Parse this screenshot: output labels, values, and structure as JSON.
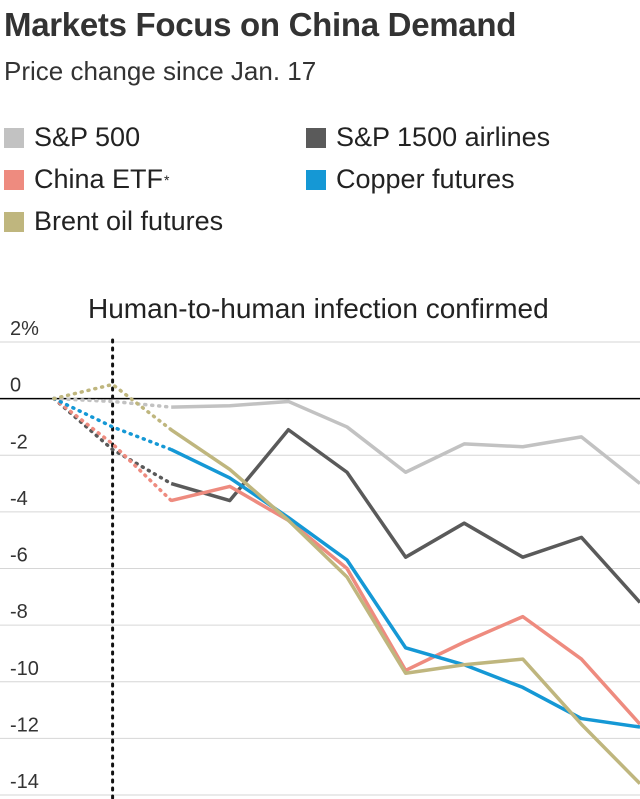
{
  "header": {
    "title": "Markets Focus on China Demand",
    "subtitle": "Price change since Jan. 17"
  },
  "legend": [
    {
      "label": "S&P 500",
      "note": "",
      "color": "#c2c2c2"
    },
    {
      "label": "S&P 1500 airlines",
      "note": "",
      "color": "#5a5a5a"
    },
    {
      "label": "China ETF",
      "note": "*",
      "color": "#ee8b7f"
    },
    {
      "label": "Copper futures",
      "note": "",
      "color": "#1598d5"
    },
    {
      "label": "Brent oil futures",
      "note": "",
      "color": "#bfb67e"
    }
  ],
  "chart_data": {
    "type": "line",
    "title": "Markets Focus on China Demand",
    "subtitle": "Price change since Jan. 17",
    "ylim": [
      -14,
      2
    ],
    "yticks": [
      2,
      0,
      -2,
      -4,
      -6,
      -8,
      -10,
      -12,
      -14
    ],
    "ytick_labels": [
      "2%",
      "0",
      "-2",
      "-4",
      "-6",
      "-8",
      "-10",
      "-12",
      "-14"
    ],
    "x": [
      0,
      1,
      2,
      3,
      4,
      5,
      6,
      7,
      8,
      9,
      10
    ],
    "annotation": {
      "label": "Human-to-human infection confirmed",
      "x": 1
    },
    "series": [
      {
        "name": "S&P 500",
        "color": "#c2c2c2",
        "values": [
          0,
          -0.1,
          -0.3,
          -0.25,
          -0.1,
          -1.0,
          -2.6,
          -1.6,
          -1.7,
          -1.35,
          -3.0
        ]
      },
      {
        "name": "S&P 1500 airlines",
        "color": "#5a5a5a",
        "values": [
          0,
          -1.8,
          -3.0,
          -3.6,
          -1.1,
          -2.6,
          -5.6,
          -4.4,
          -5.6,
          -4.9,
          -7.2
        ]
      },
      {
        "name": "China ETF",
        "color": "#ee8b7f",
        "values": [
          0,
          -1.6,
          -3.6,
          -3.1,
          -4.3,
          -6.0,
          -9.6,
          -8.6,
          -7.7,
          -9.2,
          -11.5
        ]
      },
      {
        "name": "Copper futures",
        "color": "#1598d5",
        "values": [
          0,
          -1.0,
          -1.8,
          -2.8,
          -4.2,
          -5.7,
          -8.8,
          -9.4,
          -10.2,
          -11.3,
          -11.6
        ]
      },
      {
        "name": "Brent oil futures",
        "color": "#bfb67e",
        "values": [
          0,
          0.5,
          -1.1,
          -2.5,
          -4.3,
          -6.3,
          -9.7,
          -9.4,
          -9.2,
          -11.5,
          -13.6
        ]
      }
    ],
    "dotted_segments_until_x": 2,
    "grid": true,
    "legend_position": "top"
  }
}
